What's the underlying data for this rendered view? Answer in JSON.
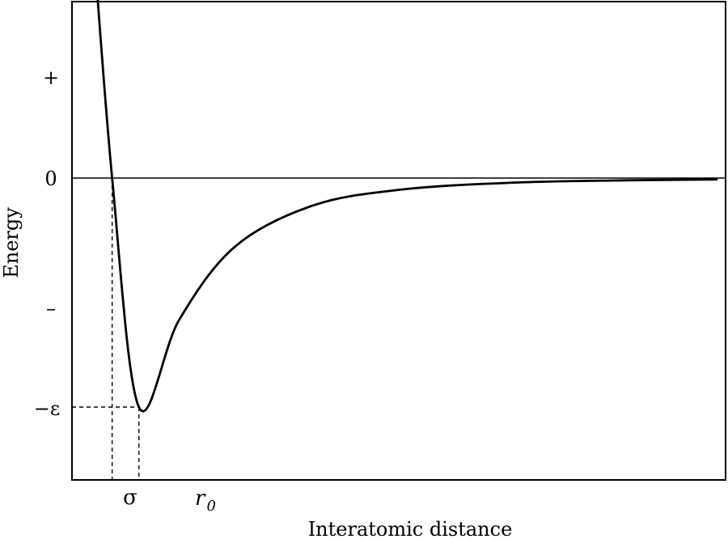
{
  "chart_data": {
    "type": "line",
    "xlabel": "Interatomic distance",
    "ylabel": "Energy",
    "y_tick_labels": {
      "plus": "+",
      "zero": "0",
      "minus": "–",
      "epsilon": "−ε"
    },
    "x_markers": {
      "sigma": "σ",
      "r0_main": "r",
      "r0_sub": "0"
    },
    "series": [
      {
        "x": [
          0.91,
          1.0,
          1.12,
          1.3,
          1.55,
          1.9,
          2.3,
          2.8,
          3.3,
          3.71
        ],
        "values": [
          2.6,
          0.0,
          -1.0,
          -0.62,
          -0.3,
          -0.12,
          -0.05,
          -0.02,
          -0.01,
          -0.006
        ]
      }
    ],
    "points": {
      "sigma": {
        "x": 1.0,
        "y": 0.0
      },
      "r0": {
        "x": 1.12,
        "y": -1.0
      }
    },
    "xlim": [
      0.82,
      3.75
    ],
    "ylim": [
      -1.5,
      1.5
    ],
    "grid": false,
    "zero_line": true,
    "legend": "none",
    "colors": {
      "line": "#000000",
      "frame": "#000000"
    }
  }
}
